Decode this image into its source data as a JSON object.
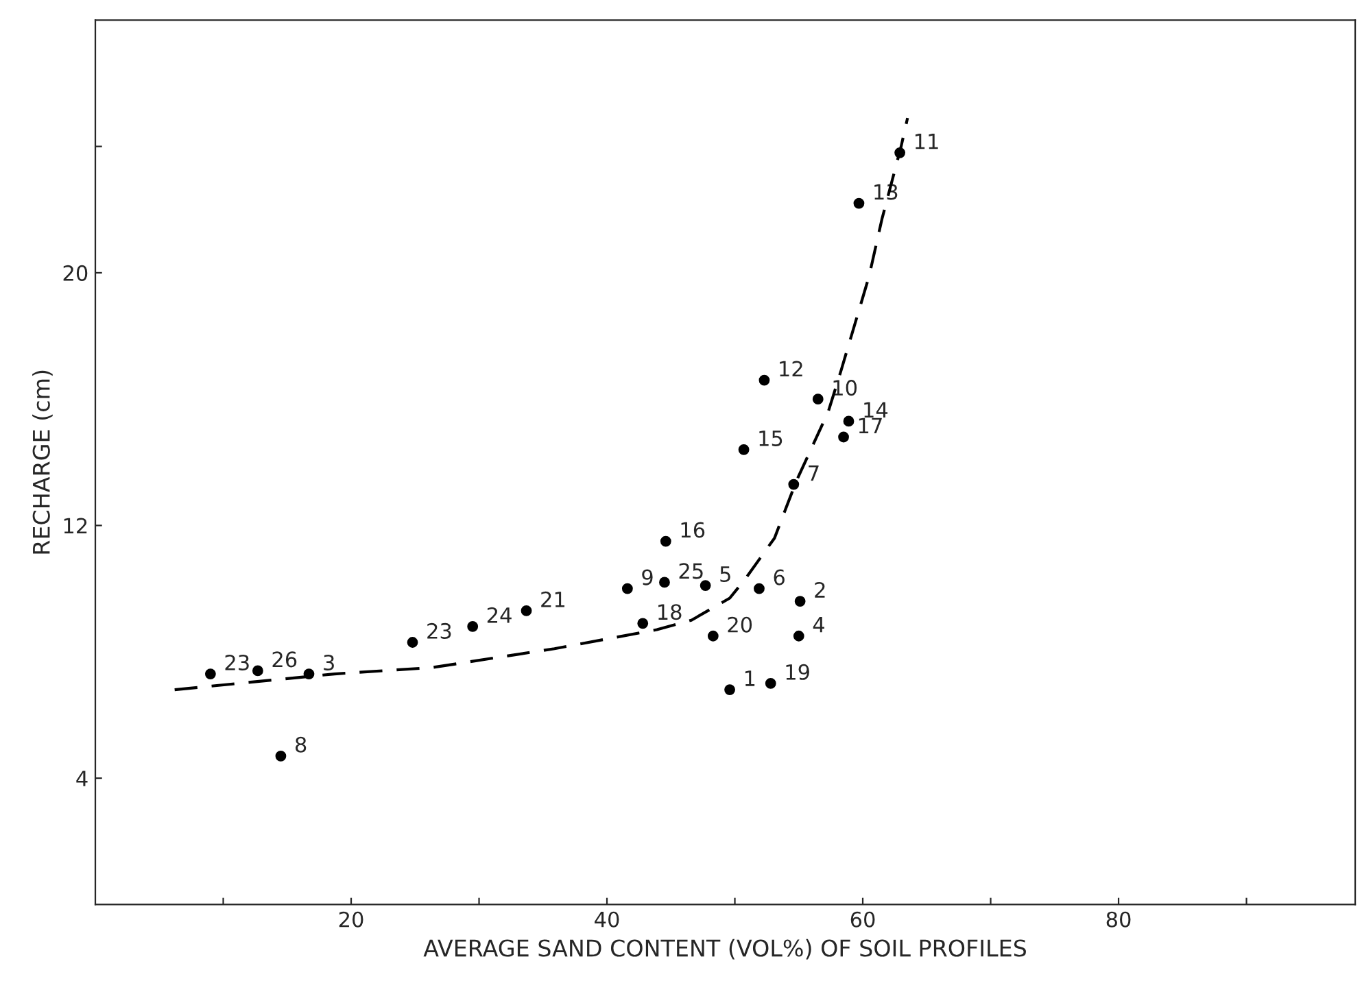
{
  "chart_data": {
    "type": "scatter",
    "xlabel": "AVERAGE SAND CONTENT (VOL%) OF SOIL PROFILES",
    "ylabel": "RECHARGE (cm)",
    "xlim": [
      0,
      98.5
    ],
    "ylim": [
      0,
      28
    ],
    "xticks": [
      {
        "value": 10,
        "label": null
      },
      20,
      {
        "value": 30,
        "label": null
      },
      40,
      {
        "value": 50,
        "label": null
      },
      60,
      {
        "value": 70,
        "label": null
      },
      80,
      {
        "value": 90,
        "label": null
      }
    ],
    "yticks": [
      4,
      12,
      20,
      {
        "value": 24,
        "label": null
      }
    ],
    "grid": false,
    "marker": "circle",
    "series": [
      {
        "color": "#000000",
        "x": [
          9.0,
          12.7,
          16.7,
          24.8,
          29.5,
          33.7,
          41.6,
          44.5,
          47.7,
          42.8,
          44.6,
          51.9,
          55.1,
          48.3,
          55.0,
          49.6,
          52.8,
          14.5,
          62.9,
          59.7,
          52.3,
          56.5,
          58.9,
          58.5,
          50.7,
          54.6
        ],
        "values": [
          7.3,
          7.4,
          7.3,
          8.3,
          8.8,
          9.3,
          10.0,
          10.2,
          10.1,
          8.9,
          11.5,
          10.0,
          9.6,
          8.5,
          8.5,
          6.8,
          7.0,
          4.7,
          23.8,
          22.2,
          16.6,
          16.0,
          15.3,
          14.8,
          14.4,
          13.3
        ]
      },
      {
        "type": "line",
        "color": "#000000",
        "line_style": "dashed",
        "marker": "none",
        "x": [
          6.2,
          18.7,
          26.3,
          35.9,
          43.9,
          46.6,
          49.6,
          50.8,
          53.1,
          54.8,
          57.3,
          58.3,
          60.5,
          61.5,
          63.0,
          63.5
        ],
        "values": [
          6.8,
          7.3,
          7.5,
          8.1,
          8.7,
          9.0,
          9.7,
          10.3,
          11.6,
          13.4,
          15.6,
          16.9,
          19.9,
          21.7,
          24.0,
          24.9
        ]
      }
    ],
    "annotations": [
      {
        "text": "23",
        "x": 9.0,
        "y": 7.3
      },
      {
        "text": "26",
        "x": 12.7,
        "y": 7.4
      },
      {
        "text": "3",
        "x": 16.7,
        "y": 7.3
      },
      {
        "text": "23",
        "x": 24.8,
        "y": 8.3
      },
      {
        "text": "24",
        "x": 29.5,
        "y": 8.8
      },
      {
        "text": "21",
        "x": 33.7,
        "y": 9.3
      },
      {
        "text": "9",
        "x": 41.6,
        "y": 10.0
      },
      {
        "text": "25",
        "x": 44.5,
        "y": 10.2
      },
      {
        "text": "5",
        "x": 47.7,
        "y": 10.1
      },
      {
        "text": "18",
        "x": 42.8,
        "y": 8.9
      },
      {
        "text": "16",
        "x": 44.6,
        "y": 11.5
      },
      {
        "text": "6",
        "x": 51.9,
        "y": 10.0
      },
      {
        "text": "2",
        "x": 55.1,
        "y": 9.6
      },
      {
        "text": "20",
        "x": 48.3,
        "y": 8.5
      },
      {
        "text": "4",
        "x": 55.0,
        "y": 8.5
      },
      {
        "text": "1",
        "x": 49.6,
        "y": 6.8
      },
      {
        "text": "19",
        "x": 52.8,
        "y": 7.0
      },
      {
        "text": "8",
        "x": 14.5,
        "y": 4.7
      },
      {
        "text": "11",
        "x": 62.9,
        "y": 23.8
      },
      {
        "text": "13",
        "x": 59.7,
        "y": 22.2
      },
      {
        "text": "12",
        "x": 52.3,
        "y": 16.6
      },
      {
        "text": "10",
        "x": 56.5,
        "y": 16.0
      },
      {
        "text": "14",
        "x": 58.9,
        "y": 15.3
      },
      {
        "text": "17",
        "x": 58.5,
        "y": 14.8
      },
      {
        "text": "15",
        "x": 50.7,
        "y": 14.4
      },
      {
        "text": "7",
        "x": 54.6,
        "y": 13.3
      }
    ]
  }
}
